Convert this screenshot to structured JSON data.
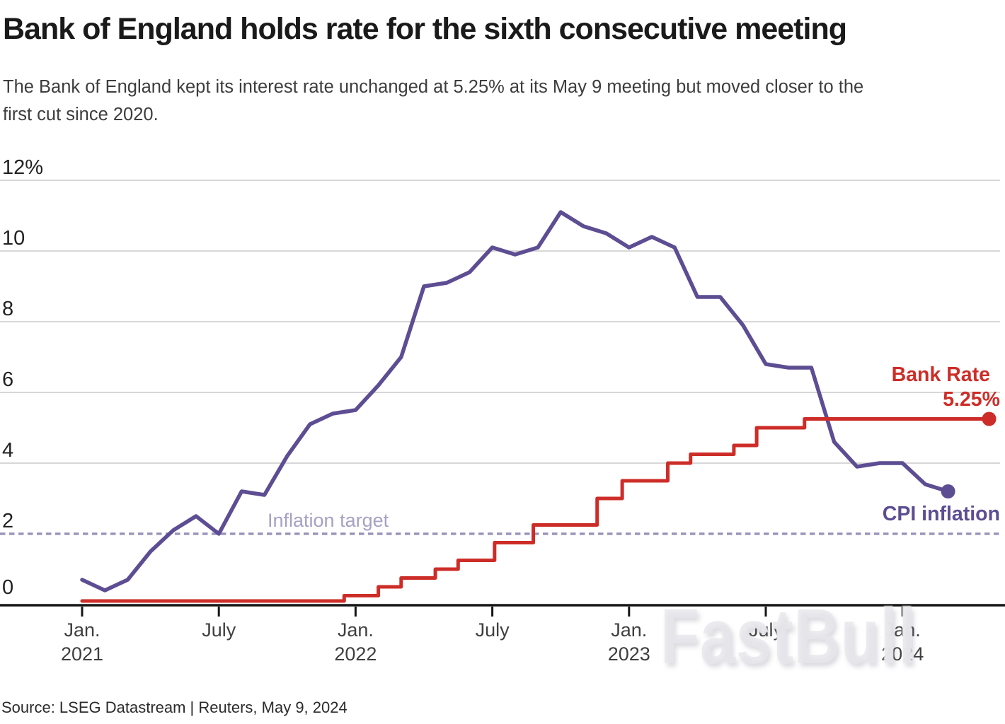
{
  "header": {
    "title": "Bank of England holds rate for the sixth consecutive meeting",
    "subtitle_lines": [
      "The Bank of England kept its interest rate unchanged at 5.25% at its May 9 meeting but moved closer to the",
      "first cut since 2020."
    ]
  },
  "source": {
    "text": "Source: LSEG Datastream | Reuters, May 9, 2024"
  },
  "watermark": {
    "text": "FastBull"
  },
  "annotations": {
    "bank_rate_label": "Bank Rate",
    "bank_rate_value": "5.25%",
    "cpi_label": "CPI inflation",
    "target_label": "Inflation target"
  },
  "colors": {
    "cpi": "#5d4d92",
    "bank_rate": "#cd2d28",
    "target_line": "#9b95bc",
    "target_label": "#a7a1c4",
    "gridline": "#cacaca",
    "axis": "#161616",
    "y_label": "#222222",
    "x_label": "#3f3f3f"
  },
  "chart_data": {
    "type": "line",
    "title": "Bank of England holds rate for the sixth consecutive meeting",
    "ylabel": "%",
    "ylim": [
      0,
      12
    ],
    "grid": "horizontal",
    "legend_position": "end-of-line labels",
    "y_ticks": [
      {
        "value": 12,
        "label": "12%"
      },
      {
        "value": 10,
        "label": "10"
      },
      {
        "value": 8,
        "label": "8"
      },
      {
        "value": 6,
        "label": "6"
      },
      {
        "value": 4,
        "label": "4"
      },
      {
        "value": 2,
        "label": "2"
      },
      {
        "value": 0,
        "label": "0"
      }
    ],
    "x_axis": {
      "unit": "month",
      "start": "2021-01",
      "end": "2024-05"
    },
    "x_ticks": [
      {
        "month_index": 0,
        "line1": "Jan.",
        "line2": "2021"
      },
      {
        "month_index": 6,
        "line1": "July",
        "line2": ""
      },
      {
        "month_index": 12,
        "line1": "Jan.",
        "line2": "2022"
      },
      {
        "month_index": 18,
        "line1": "July",
        "line2": ""
      },
      {
        "month_index": 24,
        "line1": "Jan.",
        "line2": "2023"
      },
      {
        "month_index": 30,
        "line1": "July",
        "line2": ""
      },
      {
        "month_index": 36,
        "line1": "Jan.",
        "line2": "2024"
      }
    ],
    "series": [
      {
        "name": "CPI inflation",
        "style": "line",
        "color": "#5d4d92",
        "month_index_start": 0,
        "values": [
          0.7,
          0.4,
          0.7,
          1.5,
          2.1,
          2.5,
          2.0,
          3.2,
          3.1,
          4.2,
          5.1,
          5.4,
          5.5,
          6.2,
          7.0,
          9.0,
          9.1,
          9.4,
          10.1,
          9.9,
          10.1,
          11.1,
          10.7,
          10.5,
          10.1,
          10.4,
          10.1,
          8.7,
          8.7,
          7.9,
          6.8,
          6.7,
          6.7,
          4.6,
          3.9,
          4.0,
          4.0,
          3.4,
          3.2
        ],
        "end_dot": true,
        "end_value": 3.2
      },
      {
        "name": "Bank Rate",
        "style": "step",
        "color": "#cd2d28",
        "points": [
          [
            0,
            0.1
          ],
          [
            11.5,
            0.25
          ],
          [
            13,
            0.5
          ],
          [
            14,
            0.75
          ],
          [
            15.5,
            1.0
          ],
          [
            16.5,
            1.25
          ],
          [
            18.1,
            1.75
          ],
          [
            19.8,
            2.25
          ],
          [
            22.6,
            3.0
          ],
          [
            23.7,
            3.5
          ],
          [
            25.7,
            4.0
          ],
          [
            26.7,
            4.25
          ],
          [
            28.6,
            4.5
          ],
          [
            29.6,
            5.0
          ],
          [
            31.7,
            5.25
          ]
        ],
        "end_month_index": 39.8,
        "end_dot": true,
        "end_value": 5.25
      }
    ],
    "reference_line": {
      "label": "Inflation target",
      "value": 2,
      "style": "dotted",
      "color": "#9b95bc"
    }
  }
}
